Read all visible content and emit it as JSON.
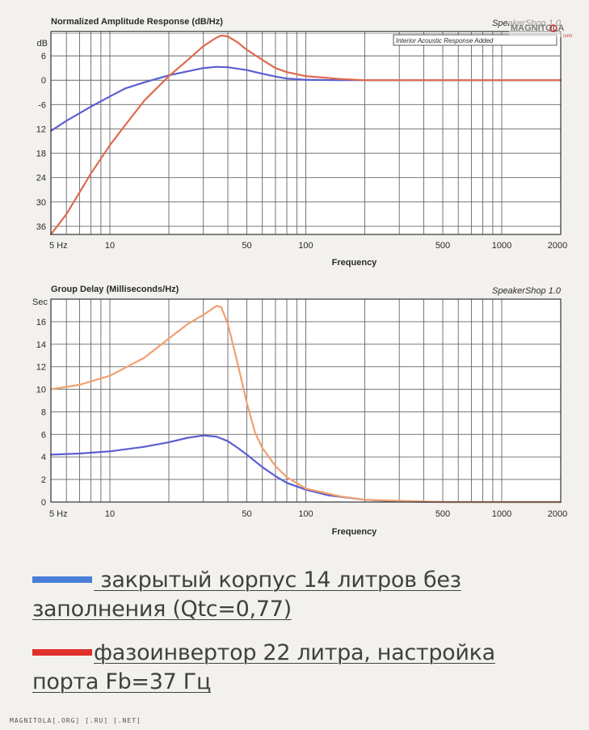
{
  "chart_data": [
    {
      "type": "line",
      "title": "Normalized Amplitude Response (dB/Hz)",
      "brand": "SpeakerShop 1.0",
      "annotation": "Interior Acoustic Response Added",
      "xlabel": "Frequency",
      "ylabel": "dB",
      "x_scale": "log",
      "xlim": [
        5,
        2000
      ],
      "ylim": [
        -38,
        12
      ],
      "x_ticks": [
        {
          "value": 5,
          "label": "5 Hz"
        },
        {
          "value": 10,
          "label": "10"
        },
        {
          "value": 50,
          "label": "50"
        },
        {
          "value": 100,
          "label": "100"
        },
        {
          "value": 500,
          "label": "500"
        },
        {
          "value": 1000,
          "label": "1000"
        },
        {
          "value": 2000,
          "label": "2000"
        }
      ],
      "y_ticks": [
        {
          "value": 6,
          "label": "6"
        },
        {
          "value": 0,
          "label": "0"
        },
        {
          "value": -6,
          "label": "-6"
        },
        {
          "value": -12,
          "label": "12"
        },
        {
          "value": -18,
          "label": "18"
        },
        {
          "value": -24,
          "label": "24"
        },
        {
          "value": -30,
          "label": "30"
        },
        {
          "value": -36,
          "label": "36"
        }
      ],
      "y_top_label": "dB",
      "grid": true,
      "series": [
        {
          "color": "#5a5fd0",
          "x": [
            5,
            6,
            8,
            10,
            12,
            15,
            20,
            25,
            30,
            35,
            40,
            50,
            60,
            70,
            80,
            100,
            150,
            200,
            500,
            1000,
            2000
          ],
          "y": [
            -12.5,
            -10,
            -6.5,
            -4,
            -2,
            -0.5,
            1.2,
            2.2,
            3,
            3.3,
            3.2,
            2.5,
            1.6,
            0.9,
            0.4,
            0.1,
            0,
            0,
            0,
            0,
            0
          ]
        },
        {
          "color": "#e06a4e",
          "x": [
            5,
            6,
            8,
            10,
            12,
            15,
            20,
            25,
            30,
            35,
            37,
            40,
            45,
            50,
            60,
            70,
            80,
            100,
            150,
            200,
            500,
            1000,
            2000
          ],
          "y": [
            -39,
            -33,
            -23,
            -16,
            -11,
            -5,
            1,
            5,
            8.4,
            10.5,
            11,
            10.8,
            9.3,
            7.5,
            5,
            3,
            2,
            1,
            0.3,
            0,
            0,
            0,
            0
          ]
        }
      ]
    },
    {
      "type": "line",
      "title": "Group Delay (Milliseconds/Hz)",
      "brand": "SpeakerShop 1.0",
      "xlabel": "Frequency",
      "ylabel": "Sec",
      "x_scale": "log",
      "xlim": [
        5,
        2000
      ],
      "ylim": [
        0,
        18
      ],
      "x_ticks": [
        {
          "value": 5,
          "label": "5 Hz"
        },
        {
          "value": 10,
          "label": "10"
        },
        {
          "value": 50,
          "label": "50"
        },
        {
          "value": 100,
          "label": "100"
        },
        {
          "value": 500,
          "label": "500"
        },
        {
          "value": 1000,
          "label": "1000"
        },
        {
          "value": 2000,
          "label": "2000"
        }
      ],
      "y_ticks": [
        {
          "value": 16,
          "label": "16"
        },
        {
          "value": 14,
          "label": "14"
        },
        {
          "value": 12,
          "label": "12"
        },
        {
          "value": 10,
          "label": "10"
        },
        {
          "value": 8,
          "label": "8"
        },
        {
          "value": 6,
          "label": "6"
        },
        {
          "value": 4,
          "label": "4"
        },
        {
          "value": 2,
          "label": "2"
        },
        {
          "value": 0,
          "label": "0"
        }
      ],
      "y_top_label": "Sec",
      "grid": true,
      "series": [
        {
          "color": "#5a5fd0",
          "x": [
            5,
            7,
            10,
            15,
            20,
            25,
            30,
            35,
            40,
            45,
            50,
            60,
            70,
            80,
            100,
            130,
            200,
            300,
            500,
            1000,
            2000
          ],
          "y": [
            4.2,
            4.3,
            4.5,
            4.9,
            5.3,
            5.7,
            5.9,
            5.8,
            5.4,
            4.8,
            4.2,
            3.1,
            2.3,
            1.7,
            1.1,
            0.6,
            0.2,
            0.05,
            0,
            0,
            0
          ]
        },
        {
          "color": "#f0a070",
          "x": [
            5,
            7,
            10,
            15,
            20,
            25,
            30,
            35,
            37,
            40,
            45,
            50,
            55,
            60,
            70,
            80,
            100,
            150,
            200,
            500,
            1000,
            2000
          ],
          "y": [
            10,
            10.4,
            11.2,
            12.8,
            14.5,
            15.8,
            16.6,
            17.4,
            17.3,
            15.8,
            12.2,
            8.8,
            6.2,
            4.8,
            3.2,
            2.2,
            1.2,
            0.5,
            0.2,
            0,
            0,
            0
          ]
        }
      ]
    }
  ],
  "watermark": {
    "text": "MAGNITOLA",
    "sub": "com"
  },
  "legend": {
    "closed_box": {
      "color": "#4a7fd8",
      "line1": " закрытый корпус 14 литров без",
      "line2": "заполнения (Qtc=0,77)"
    },
    "ported_box": {
      "color": "#e0302a",
      "line1": "фазоинвертор 22 литра, настройка",
      "line2": "порта Fb=37 Гц"
    }
  },
  "footer": "MAGNITOLA[.ORG] [.RU] [.NET]"
}
